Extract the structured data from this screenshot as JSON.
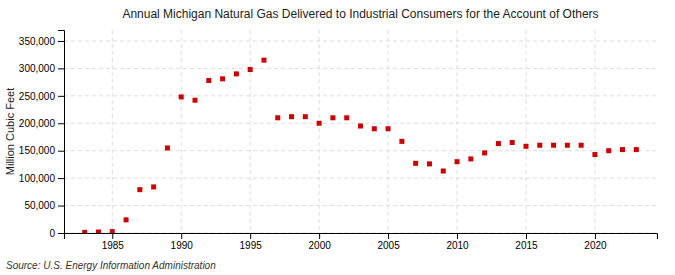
{
  "chart_data": {
    "type": "scatter",
    "title": "Annual Michigan Natural Gas Delivered to Industrial Consumers for the Account of Others",
    "ylabel": "Million Cubic Feet",
    "source": "Source: U.S. Energy Information Administration",
    "x": [
      1983,
      1984,
      1985,
      1986,
      1987,
      1988,
      1989,
      1990,
      1991,
      1992,
      1993,
      1994,
      1995,
      1996,
      1997,
      1998,
      1999,
      2000,
      2001,
      2002,
      2003,
      2004,
      2005,
      2006,
      2007,
      2008,
      2009,
      2010,
      2011,
      2012,
      2013,
      2014,
      2015,
      2016,
      2017,
      2018,
      2019,
      2020,
      2021,
      2022,
      2023
    ],
    "values": [
      1200,
      1800,
      2500,
      24000,
      79000,
      84000,
      155000,
      248000,
      242000,
      278000,
      281000,
      290000,
      298000,
      315000,
      210000,
      212000,
      212000,
      200000,
      210000,
      210000,
      195000,
      190000,
      190000,
      167000,
      127000,
      126000,
      113000,
      130000,
      135000,
      146000,
      163000,
      165000,
      158000,
      160000,
      160000,
      160000,
      160000,
      143000,
      150000,
      152000,
      152000
    ],
    "color": "#cc0000",
    "marker": "square",
    "xlim": [
      1981.5,
      2024.5
    ],
    "xticks": [
      1985,
      1990,
      1995,
      2000,
      2005,
      2010,
      2015,
      2020
    ],
    "ylim": [
      0,
      370000
    ],
    "yticks": [
      0,
      {
        "value": 50000,
        "label": "50,000"
      },
      {
        "value": 100000,
        "label": "100,000"
      },
      {
        "value": 150000,
        "label": "150,000"
      },
      {
        "value": 200000,
        "label": "200,000"
      },
      {
        "value": 250000,
        "label": "250,000"
      },
      {
        "value": 300000,
        "label": "300,000"
      },
      {
        "value": 350000,
        "label": "350,000"
      }
    ],
    "grid": true
  }
}
